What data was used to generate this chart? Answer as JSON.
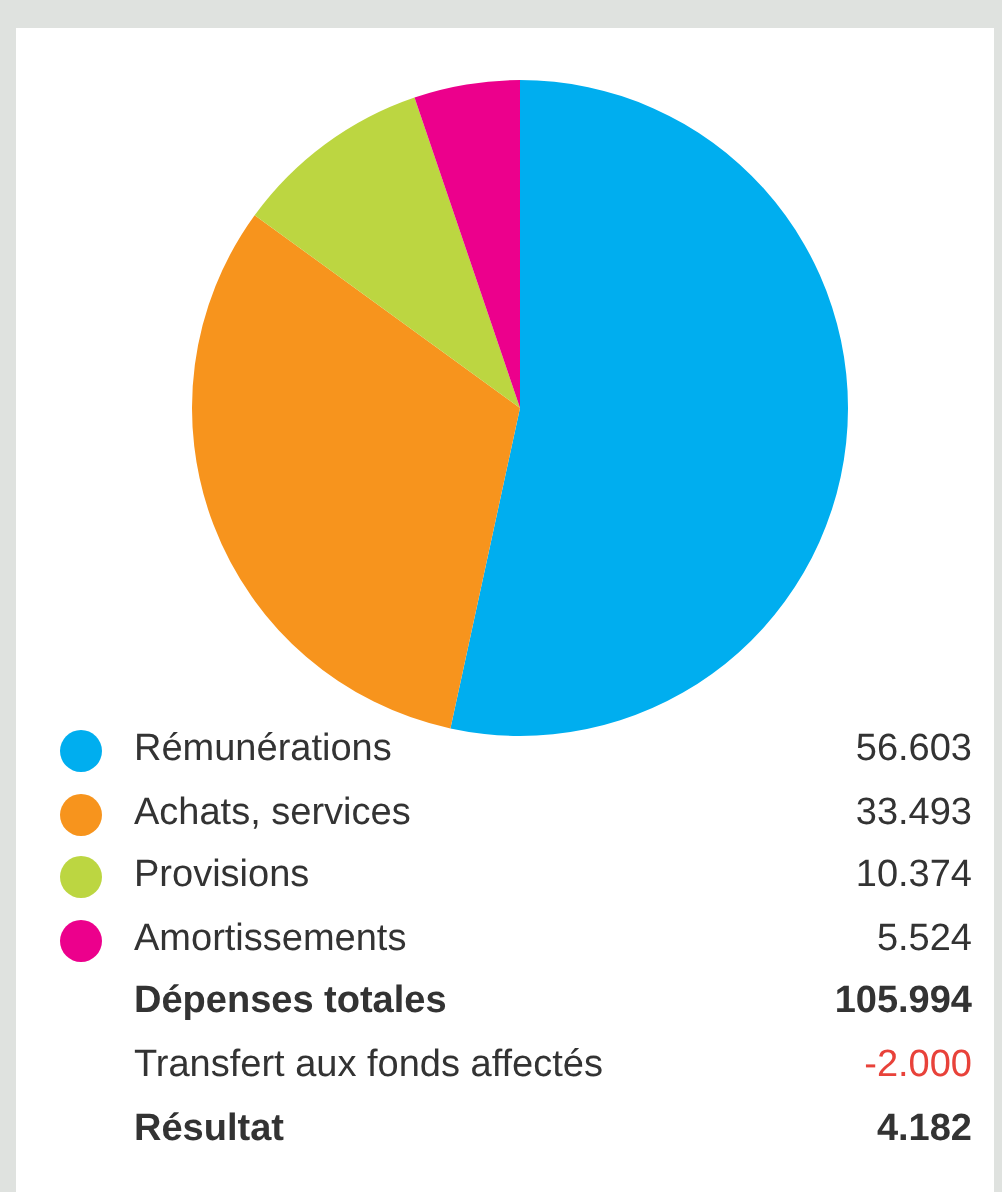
{
  "chart_data": {
    "type": "pie",
    "categories": [
      "Rémunérations",
      "Achats, services",
      "Provisions",
      "Amortissements"
    ],
    "values": [
      56603,
      33493,
      10374,
      5524
    ],
    "value_labels": [
      "56.603",
      "33.493",
      "10.374",
      "5.524"
    ],
    "colors": [
      "#00aeef",
      "#f7941d",
      "#bcd641",
      "#ec008c"
    ],
    "legend": "bottom",
    "annotations": [
      "Dépenses totales",
      "105.994",
      "Transfert aux fonds affectés",
      "-2.000",
      "Résultat",
      "4.182"
    ]
  }
}
